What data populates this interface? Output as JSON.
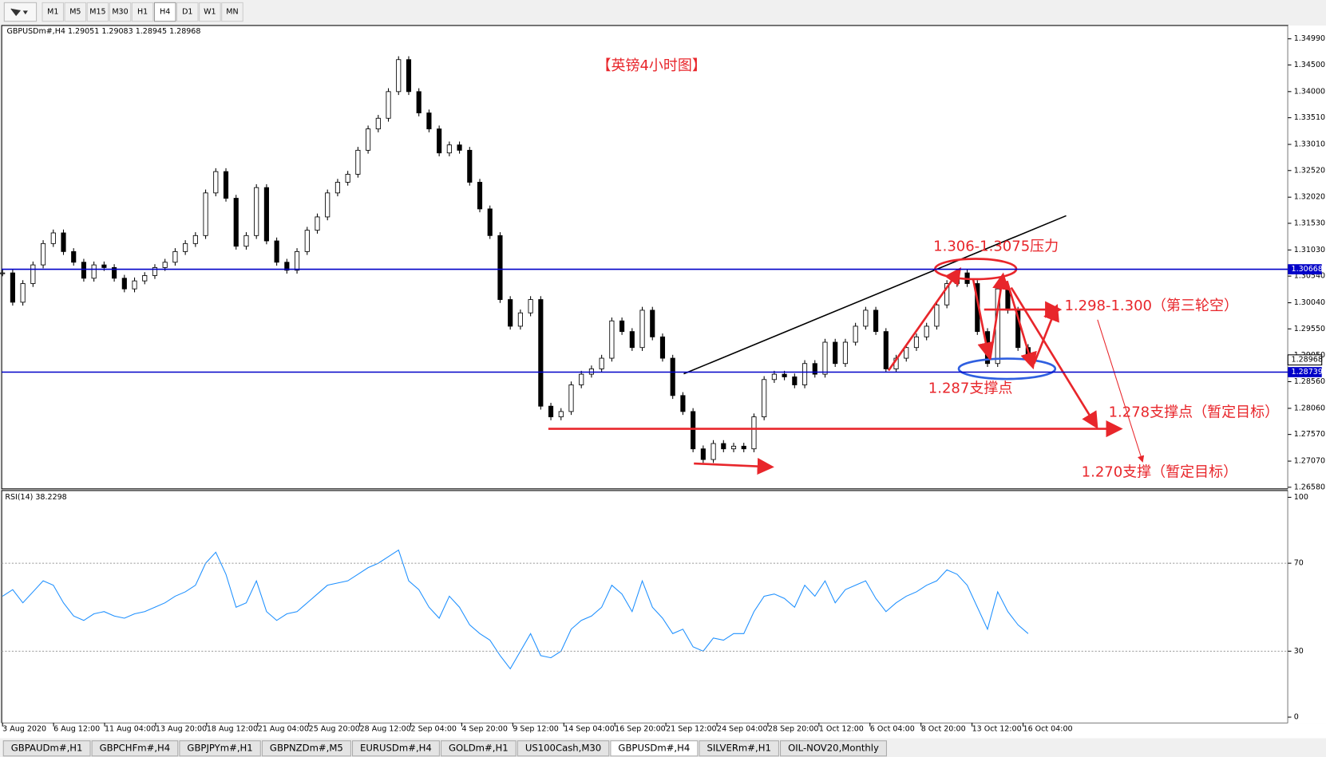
{
  "toolbar": {
    "timeframes": [
      "M1",
      "M5",
      "M15",
      "M30",
      "H1",
      "H4",
      "D1",
      "W1",
      "MN"
    ],
    "active": 5
  },
  "chart_data": [
    {
      "type": "candlestick",
      "header": "GBPUSDm#,H4  1.29051 1.29083 1.28945 1.28968",
      "annotations": [
        "【英镑4小时图】",
        "1.306-1.3075压力",
        "1.298-1.300（第三轮空）",
        "1.287支撑点",
        "1.278支撑点（暂定目标）",
        "1.270支撑（暂定目标）"
      ],
      "values": [
        1.306,
        1.3005,
        1.304,
        1.3075,
        1.3115,
        1.3135,
        1.31,
        1.308,
        1.305,
        1.3075,
        1.307,
        1.305,
        1.303,
        1.3045,
        1.3055,
        1.307,
        1.308,
        1.31,
        1.3115,
        1.313,
        1.321,
        1.325,
        1.32,
        1.311,
        1.313,
        1.322,
        1.312,
        1.308,
        1.3065,
        1.31,
        1.314,
        1.3165,
        1.321,
        1.323,
        1.3245,
        1.329,
        1.333,
        1.335,
        1.34,
        1.346,
        1.34,
        1.336,
        1.333,
        1.3285,
        1.33,
        1.329,
        1.323,
        1.318,
        1.313,
        1.301,
        1.296,
        1.2985,
        1.301,
        1.281,
        1.279,
        1.28,
        1.285,
        1.287,
        1.288,
        1.29,
        1.297,
        1.295,
        1.292,
        1.299,
        1.294,
        1.29,
        1.283,
        1.28,
        1.273,
        1.271,
        1.274,
        1.273,
        1.2735,
        1.273,
        1.279,
        1.286,
        1.287,
        1.2865,
        1.285,
        1.289,
        1.287,
        1.293,
        1.289,
        1.293,
        1.296,
        1.299,
        1.295,
        1.288,
        1.29,
        1.292,
        1.294,
        1.296,
        1.3,
        1.304,
        1.306,
        1.304,
        1.295,
        1.289,
        1.303,
        1.299,
        1.292,
        1.28968
      ],
      "ylim": [
        1.2655,
        1.3524
      ],
      "yticks": [
        {
          "value": 1.3499,
          "label": "1.34990"
        },
        {
          "value": 1.345,
          "label": "1.34500"
        },
        {
          "value": 1.34,
          "label": "1.34000"
        },
        {
          "value": 1.3351,
          "label": "1.33510"
        },
        {
          "value": 1.3301,
          "label": "1.33010"
        },
        {
          "value": 1.3252,
          "label": "1.32520"
        },
        {
          "value": 1.3202,
          "label": "1.32020"
        },
        {
          "value": 1.3153,
          "label": "1.31530"
        },
        {
          "value": 1.3103,
          "label": "1.31030"
        },
        {
          "value": 1.3054,
          "label": "1.30540"
        },
        {
          "value": 1.3004,
          "label": "1.30040"
        },
        {
          "value": 1.2955,
          "label": "1.29550"
        },
        {
          "value": 1.2905,
          "label": "1.29050"
        },
        {
          "value": 1.2856,
          "label": "1.28560"
        },
        {
          "value": 1.2806,
          "label": "1.28060"
        },
        {
          "value": 1.2757,
          "label": "1.27570"
        },
        {
          "value": 1.2707,
          "label": "1.27070"
        },
        {
          "value": 1.2658,
          "label": "1.26580"
        }
      ],
      "hlines": [
        1.30668,
        1.28739
      ],
      "hline_color": "#0000c8",
      "bid": 1.28968,
      "time_labels": [
        "3 Aug 2020",
        "6 Aug 12:00",
        "11 Aug 04:00",
        "13 Aug 20:00",
        "18 Aug 12:00",
        "21 Aug 04:00",
        "25 Aug 20:00",
        "28 Aug 12:00",
        "2 Sep 04:00",
        "4 Sep 20:00",
        "9 Sep 12:00",
        "14 Sep 04:00",
        "16 Sep 20:00",
        "21 Sep 12:00",
        "24 Sep 04:00",
        "28 Sep 20:00",
        "1 Oct 12:00",
        "6 Oct 04:00",
        "8 Oct 20:00",
        "13 Oct 12:00",
        "16 Oct 04:00"
      ]
    },
    {
      "type": "line",
      "header": "RSI(14) 38.2298",
      "color": "#1e90ff",
      "values": [
        55,
        58,
        52,
        57,
        62,
        60,
        52,
        46,
        44,
        47,
        48,
        46,
        45,
        47,
        48,
        50,
        52,
        55,
        57,
        60,
        70,
        75,
        65,
        50,
        52,
        62,
        48,
        44,
        47,
        48,
        52,
        56,
        60,
        61,
        62,
        65,
        68,
        70,
        73,
        76,
        62,
        58,
        50,
        45,
        55,
        50,
        42,
        38,
        35,
        28,
        22,
        30,
        38,
        28,
        27,
        30,
        40,
        44,
        46,
        50,
        60,
        56,
        48,
        62,
        50,
        45,
        38,
        40,
        32,
        30,
        36,
        35,
        38,
        38,
        48,
        55,
        56,
        54,
        50,
        60,
        55,
        62,
        52,
        58,
        60,
        62,
        54,
        48,
        52,
        55,
        57,
        60,
        62,
        67,
        65,
        60,
        50,
        40,
        57,
        48,
        42,
        38
      ],
      "ylim": [
        0,
        100
      ],
      "yticks": [
        100,
        70,
        30,
        0
      ],
      "levels": [
        70,
        30
      ]
    }
  ],
  "tabs": {
    "items": [
      "GBPAUDm#,H1",
      "GBPCHFm#,H4",
      "GBPJPYm#,H1",
      "GBPNZDm#,M5",
      "EURUSDm#,H4",
      "GOLDm#,H1",
      "US100Cash,M30",
      "GBPUSDm#,H4",
      "SILVERm#,H1",
      "OIL-NOV20,Monthly"
    ],
    "active": 7
  }
}
